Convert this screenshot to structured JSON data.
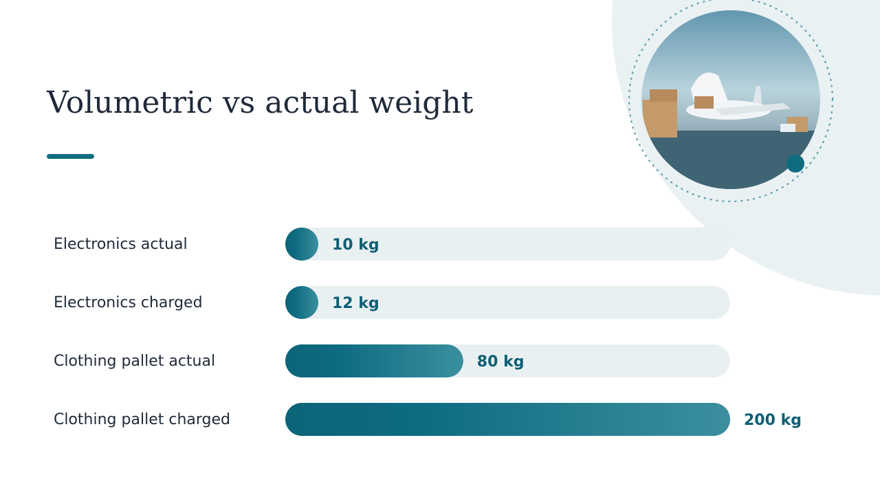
{
  "chart_data": {
    "type": "bar",
    "orientation": "horizontal",
    "title": "Volumetric vs actual weight",
    "categories": [
      "Electronics actual",
      "Electronics charged",
      "Clothing pallet actual",
      "Clothing pallet charged"
    ],
    "values": [
      10,
      12,
      80,
      200
    ],
    "value_labels": [
      "10 kg",
      "12 kg",
      "80 kg",
      "200 kg"
    ],
    "color": "#0e6b80",
    "xlim": [
      0,
      200
    ]
  }
}
